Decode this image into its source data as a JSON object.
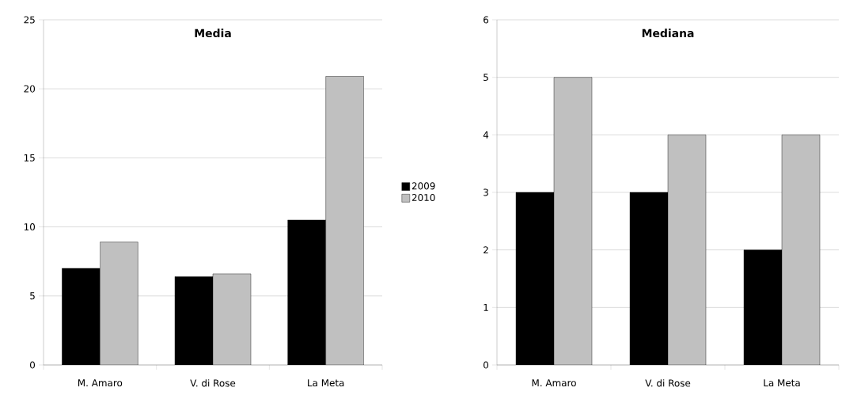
{
  "chart_data": [
    {
      "type": "bar",
      "title": "Media",
      "categories": [
        "M. Amaro",
        "V. di Rose",
        "La Meta"
      ],
      "series": [
        {
          "name": "2009",
          "color": "#000000",
          "values": [
            7.0,
            6.4,
            10.5
          ]
        },
        {
          "name": "2010",
          "color": "#c0c0c0",
          "values": [
            8.9,
            6.6,
            20.9
          ]
        }
      ],
      "ylim": [
        0,
        25
      ],
      "yticks": [
        0,
        5,
        10,
        15,
        20,
        25
      ],
      "grid": "y",
      "legend": "right"
    },
    {
      "type": "bar",
      "title": "Mediana",
      "categories": [
        "M. Amaro",
        "V. di Rose",
        "La Meta"
      ],
      "series": [
        {
          "color": "#000000",
          "values": [
            3,
            3,
            2
          ]
        },
        {
          "color": "#c0c0c0",
          "values": [
            5,
            4,
            4
          ]
        }
      ],
      "ylim": [
        0,
        6
      ],
      "yticks": [
        0,
        1,
        2,
        3,
        4,
        5,
        6
      ],
      "grid": "y"
    }
  ]
}
